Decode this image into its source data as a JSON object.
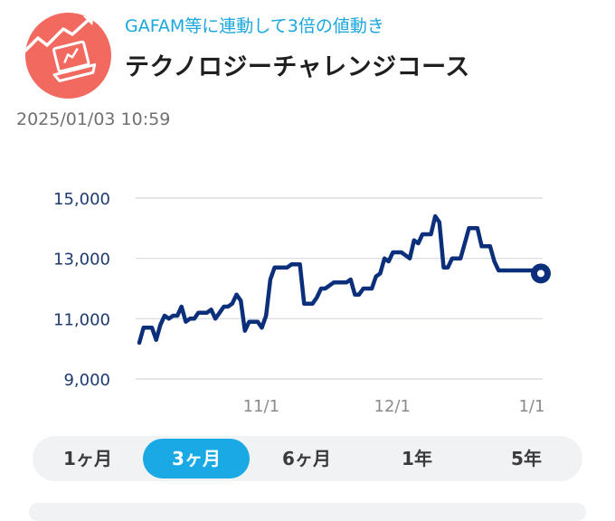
{
  "fund": {
    "icon": "laptop-chart-icon",
    "icon_color": "#f26a5f",
    "tagline": "GAFAM等に連動して3倍の値動き",
    "tagline_color": "#1aa7de",
    "title": "テクノロジーチャレンジコース"
  },
  "timestamp": "2025/01/03 10:59",
  "chart_data": {
    "type": "line",
    "line_color": "#0b2f7a",
    "grid": true,
    "ylim": [
      9000,
      15000
    ],
    "yticks": [
      {
        "value": 15000,
        "label": "15,000"
      },
      {
        "value": 13000,
        "label": "13,000"
      },
      {
        "value": 11000,
        "label": "11,000"
      },
      {
        "value": 9000,
        "label": "9,000"
      }
    ],
    "x_range": [
      0,
      95
    ],
    "xticks": [
      {
        "value": 28,
        "label": "11/1"
      },
      {
        "value": 59,
        "label": "12/1"
      },
      {
        "value": 92,
        "label": "1/1"
      }
    ],
    "series": [
      {
        "x": [
          0,
          1,
          2,
          3,
          4,
          5,
          6,
          7,
          8,
          9,
          10,
          11,
          12,
          13,
          14,
          15,
          16,
          17,
          18,
          19,
          20,
          21,
          22,
          23,
          24,
          25,
          26,
          27,
          28,
          29,
          30,
          31,
          32,
          33,
          34,
          35,
          36,
          37,
          38,
          39,
          40,
          41,
          42,
          43,
          44,
          45,
          46,
          47,
          48,
          49,
          50,
          51,
          52,
          53,
          54,
          55,
          56,
          57,
          58,
          59,
          60,
          61,
          62,
          63,
          64,
          65,
          66,
          67,
          68,
          69,
          70,
          71,
          72,
          73,
          74,
          75,
          76,
          77,
          78,
          79,
          80,
          81,
          82,
          83,
          84,
          85,
          86,
          87,
          88,
          89,
          90,
          91,
          92,
          93,
          94,
          95
        ],
        "values": [
          10200,
          10700,
          10700,
          10700,
          10300,
          10800,
          11100,
          11000,
          11100,
          11100,
          11400,
          10900,
          11000,
          11000,
          11200,
          11200,
          11200,
          11300,
          11000,
          11200,
          11400,
          11400,
          11500,
          11800,
          11600,
          10600,
          10900,
          10900,
          10900,
          10700,
          11100,
          12300,
          12700,
          12700,
          12700,
          12700,
          12800,
          12800,
          12800,
          11500,
          11500,
          11500,
          11700,
          12000,
          12000,
          12100,
          12200,
          12200,
          12200,
          12200,
          12300,
          11800,
          11800,
          12000,
          12000,
          12000,
          12400,
          12500,
          13000,
          12900,
          13200,
          13200,
          13200,
          13100,
          13000,
          13600,
          13500,
          13800,
          13800,
          13800,
          14400,
          14200,
          12700,
          12700,
          13000,
          13000,
          13000,
          13500,
          14000,
          14000,
          14000,
          13400,
          13400,
          13400,
          12900,
          12600,
          12600,
          12600,
          12600,
          12600,
          12600,
          12600,
          12600,
          12600,
          12600,
          12500
        ]
      }
    ],
    "end_marker": true
  },
  "range_tabs": {
    "items": [
      {
        "label": "1ヶ月"
      },
      {
        "label": "3ヶ月"
      },
      {
        "label": "6ヶ月"
      },
      {
        "label": "1年"
      },
      {
        "label": "5年"
      }
    ],
    "selected": "3ヶ月",
    "accent": "#19a9e5"
  }
}
